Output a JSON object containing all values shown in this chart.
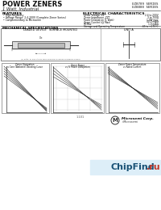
{
  "title_line1": "POWER ZENERS",
  "title_line2": "1 Watt, Industrial",
  "series_right1": "UZ8709 SERIES",
  "series_right2": "UZ8800 SERIES",
  "bg_color": "#ffffff",
  "text_color": "#000000",
  "chipfind_blue": "#1a5276",
  "chipfind_red": "#c0392b",
  "chipfind_text": "ChipFind",
  "chipfind_dot_ru": ".ru",
  "microsemi_text": "Microsemi Corp.",
  "microsemi_sub": "/ Microsemi",
  "page_number": "1-101",
  "features_title": "FEATURES",
  "features": [
    "High Reliability",
    "Voltage Range: 2.4-200V (Complete Zener Series)",
    "Complementary to Microsemi"
  ],
  "mechanical_title": "MECHANICAL SPECIFICATIONS",
  "graphs_title1": "LEADED DEVICE   SURFACE MOUNTED",
  "graphs_title2": "UNIT A",
  "elec_title": "ELECTRICAL CHARACTERISTICS",
  "elec_items": [
    [
      "Zener Voltage, VZ",
      "2.4 to 200V"
    ],
    [
      "Zener Impedance, ZZT",
      "3 to 700Ω"
    ],
    [
      "Power Dissipation (1 Watt)",
      "1.0W max"
    ],
    [
      "Zener Current (@ Max)",
      "40.0 mAdc"
    ],
    [
      "IR Max",
      "1.0 mAdc"
    ],
    [
      "Storage and Operating Temperature",
      "-65 to +175°C"
    ]
  ],
  "graph1_title": "Zener Dissipation\nvs Case (Ambient) Derating Curve",
  "graph2_title": "Zener Power\nvs % Power Dissipation",
  "graph3_title": "Zener Power Temperature\nvs Rated Current"
}
